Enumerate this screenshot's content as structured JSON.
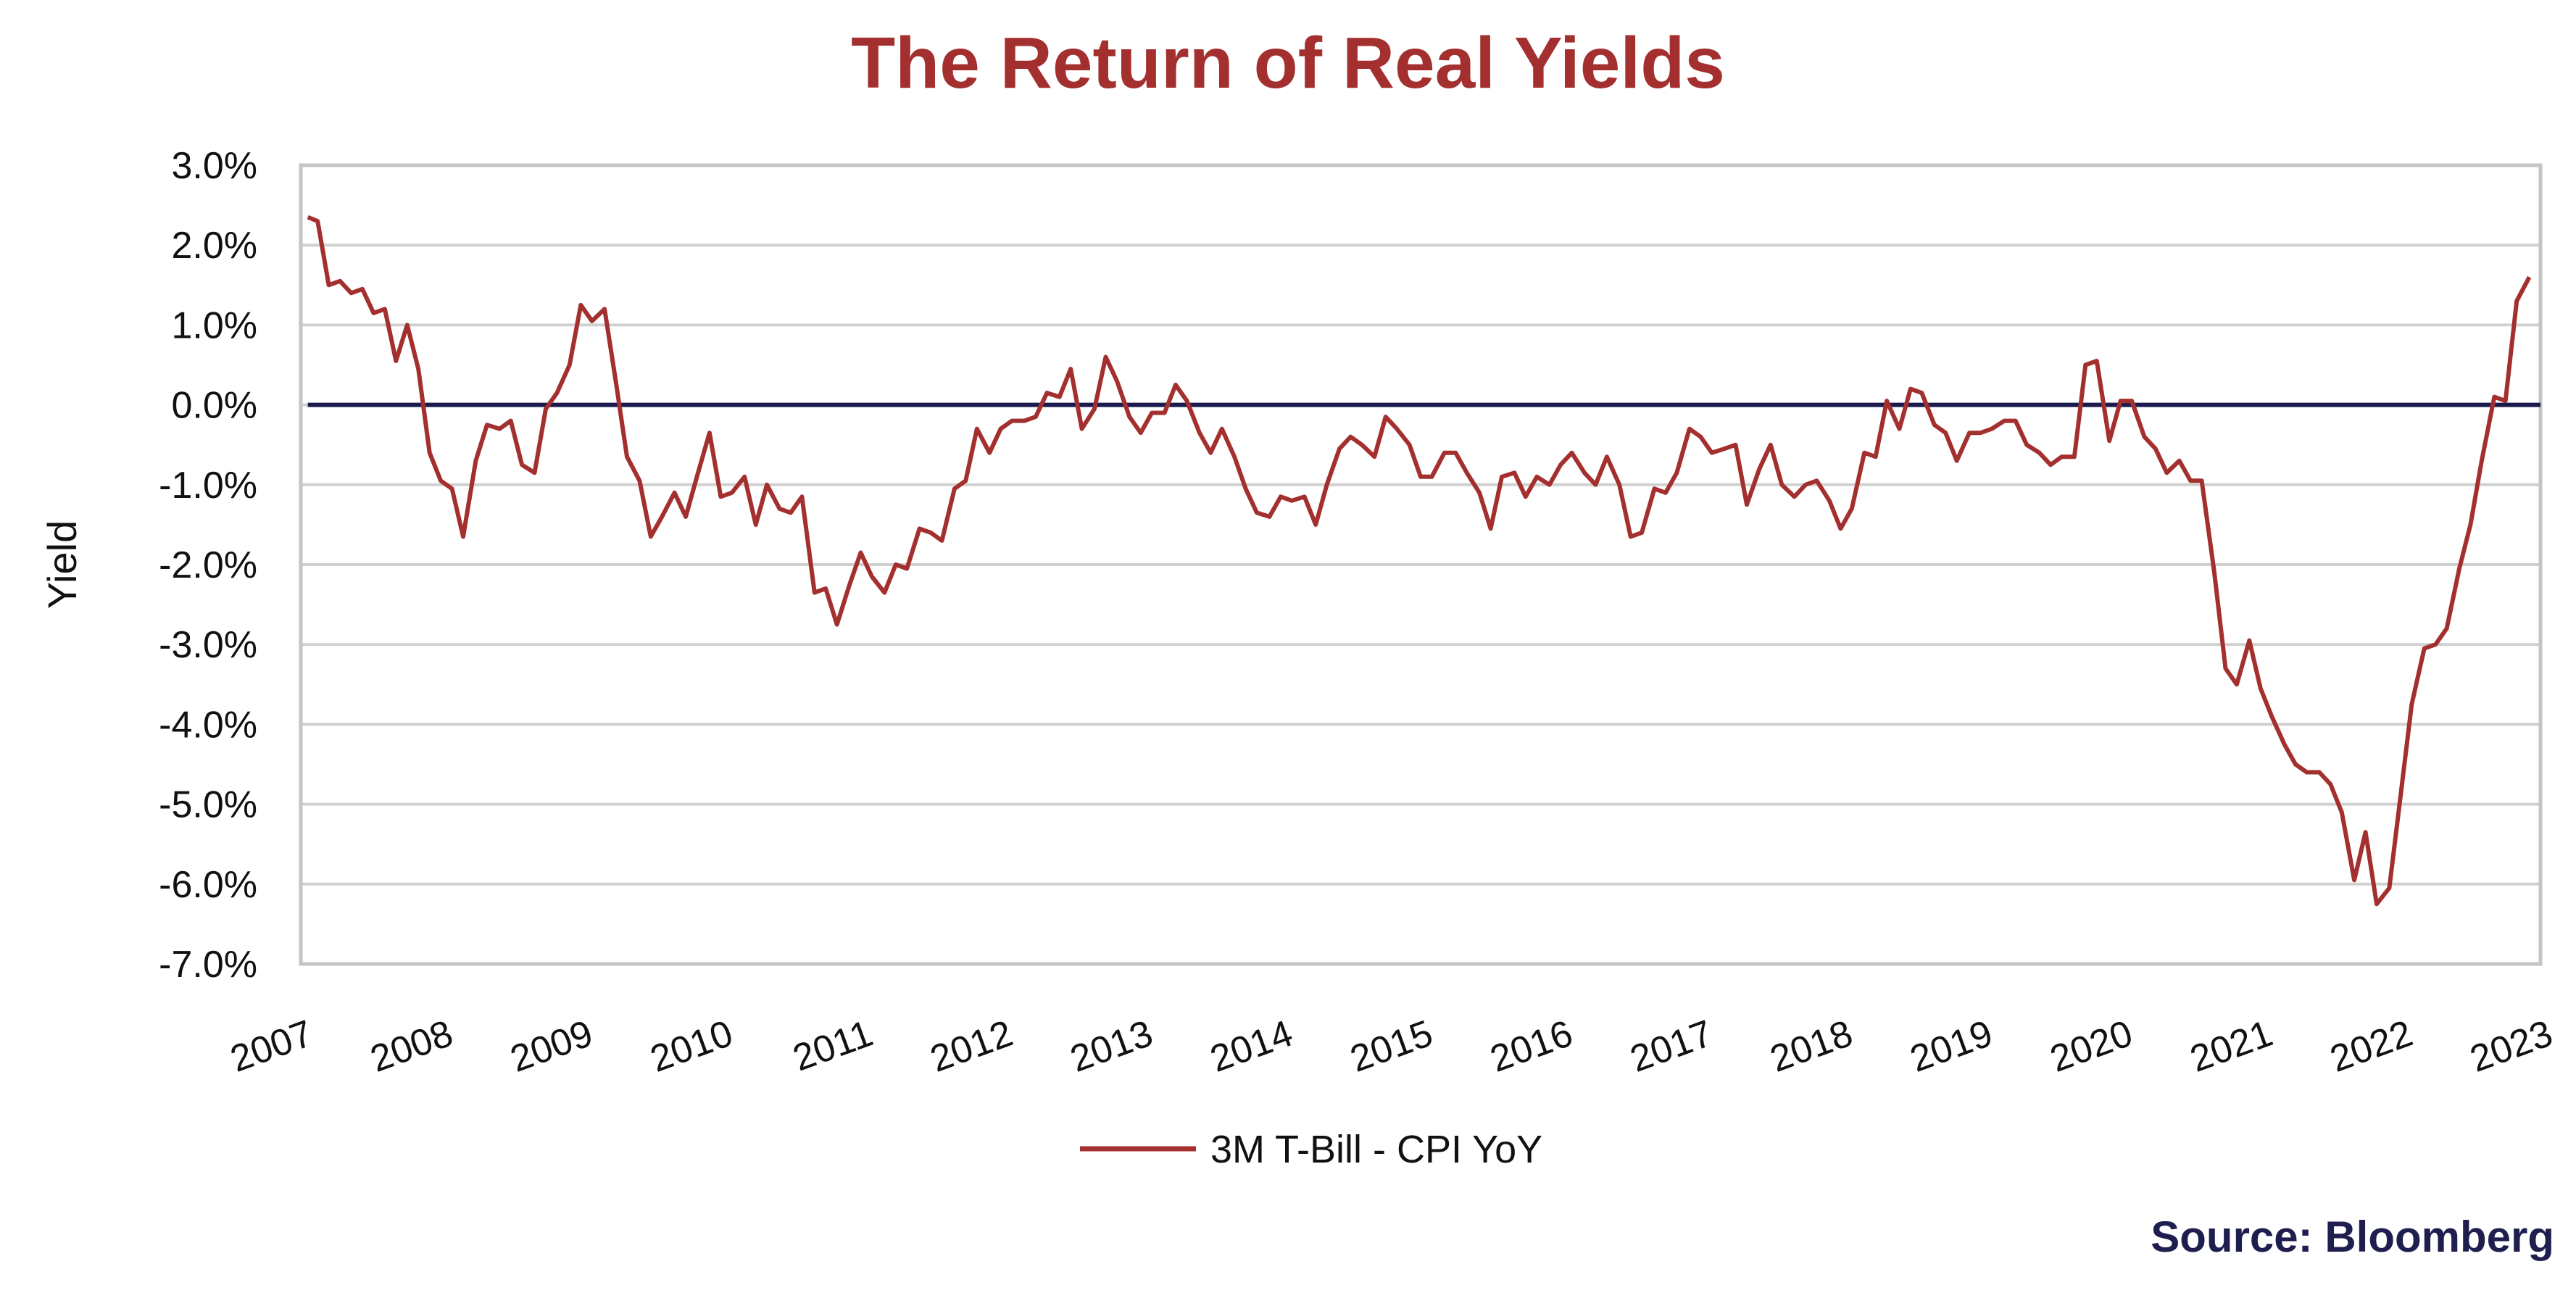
{
  "chart_data": {
    "type": "line",
    "title": "The Return of Real Yields",
    "ylabel": "Yield",
    "xlabel": "",
    "y_ticks": [
      "3.0%",
      "2.0%",
      "1.0%",
      "0.0%",
      "-1.0%",
      "-2.0%",
      "-3.0%",
      "-4.0%",
      "-5.0%",
      "-6.0%",
      "-7.0%"
    ],
    "y_tick_values": [
      3,
      2,
      1,
      0,
      -1,
      -2,
      -3,
      -4,
      -5,
      -6,
      -7
    ],
    "x_ticks": [
      "2007",
      "2008",
      "2009",
      "2010",
      "2011",
      "2012",
      "2013",
      "2014",
      "2015",
      "2016",
      "2017",
      "2018",
      "2019",
      "2020",
      "2021",
      "2022",
      "2023"
    ],
    "ylim": [
      -7,
      3
    ],
    "xlim": [
      2007,
      2023
    ],
    "grid": true,
    "legend_position": "bottom-center",
    "reference_line": 0,
    "colors": {
      "series": "#a3302f",
      "zero_line": "#1a1a4e",
      "grid": "#d0d0d0",
      "title": "#a3302f",
      "source": "#1f1f4f"
    },
    "series": [
      {
        "name": "3M T-Bill - CPI YoY",
        "points": [
          [
            2007.05,
            2.35
          ],
          [
            2007.12,
            2.3
          ],
          [
            2007.2,
            1.5
          ],
          [
            2007.28,
            1.55
          ],
          [
            2007.36,
            1.4
          ],
          [
            2007.44,
            1.45
          ],
          [
            2007.52,
            1.15
          ],
          [
            2007.6,
            1.2
          ],
          [
            2007.68,
            0.55
          ],
          [
            2007.76,
            1.0
          ],
          [
            2007.84,
            0.45
          ],
          [
            2007.92,
            -0.6
          ],
          [
            2008.0,
            -0.95
          ],
          [
            2008.08,
            -1.05
          ],
          [
            2008.16,
            -1.65
          ],
          [
            2008.25,
            -0.7
          ],
          [
            2008.33,
            -0.25
          ],
          [
            2008.42,
            -0.3
          ],
          [
            2008.5,
            -0.2
          ],
          [
            2008.58,
            -0.75
          ],
          [
            2008.67,
            -0.85
          ],
          [
            2008.75,
            -0.05
          ],
          [
            2008.83,
            0.15
          ],
          [
            2008.92,
            0.5
          ],
          [
            2009.0,
            1.25
          ],
          [
            2009.08,
            1.05
          ],
          [
            2009.17,
            1.2
          ],
          [
            2009.25,
            0.3
          ],
          [
            2009.33,
            -0.65
          ],
          [
            2009.42,
            -0.95
          ],
          [
            2009.5,
            -1.65
          ],
          [
            2009.58,
            -1.4
          ],
          [
            2009.67,
            -1.1
          ],
          [
            2009.75,
            -1.4
          ],
          [
            2009.83,
            -0.9
          ],
          [
            2009.92,
            -0.35
          ],
          [
            2010.0,
            -1.15
          ],
          [
            2010.08,
            -1.1
          ],
          [
            2010.17,
            -0.9
          ],
          [
            2010.25,
            -1.5
          ],
          [
            2010.33,
            -1.0
          ],
          [
            2010.42,
            -1.3
          ],
          [
            2010.5,
            -1.35
          ],
          [
            2010.58,
            -1.15
          ],
          [
            2010.67,
            -2.35
          ],
          [
            2010.75,
            -2.3
          ],
          [
            2010.83,
            -2.75
          ],
          [
            2010.92,
            -2.25
          ],
          [
            2011.0,
            -1.85
          ],
          [
            2011.08,
            -2.15
          ],
          [
            2011.17,
            -2.35
          ],
          [
            2011.25,
            -2.0
          ],
          [
            2011.33,
            -2.05
          ],
          [
            2011.42,
            -1.55
          ],
          [
            2011.5,
            -1.6
          ],
          [
            2011.58,
            -1.7
          ],
          [
            2011.67,
            -1.05
          ],
          [
            2011.75,
            -0.95
          ],
          [
            2011.83,
            -0.3
          ],
          [
            2011.92,
            -0.6
          ],
          [
            2012.0,
            -0.3
          ],
          [
            2012.08,
            -0.2
          ],
          [
            2012.17,
            -0.2
          ],
          [
            2012.25,
            -0.15
          ],
          [
            2012.33,
            0.15
          ],
          [
            2012.42,
            0.1
          ],
          [
            2012.5,
            0.45
          ],
          [
            2012.58,
            -0.3
          ],
          [
            2012.67,
            -0.05
          ],
          [
            2012.75,
            0.6
          ],
          [
            2012.83,
            0.3
          ],
          [
            2012.92,
            -0.15
          ],
          [
            2013.0,
            -0.35
          ],
          [
            2013.08,
            -0.1
          ],
          [
            2013.17,
            -0.1
          ],
          [
            2013.25,
            0.25
          ],
          [
            2013.33,
            0.05
          ],
          [
            2013.42,
            -0.35
          ],
          [
            2013.5,
            -0.6
          ],
          [
            2013.58,
            -0.3
          ],
          [
            2013.67,
            -0.65
          ],
          [
            2013.75,
            -1.05
          ],
          [
            2013.83,
            -1.35
          ],
          [
            2013.92,
            -1.4
          ],
          [
            2014.0,
            -1.15
          ],
          [
            2014.08,
            -1.2
          ],
          [
            2014.17,
            -1.15
          ],
          [
            2014.25,
            -1.5
          ],
          [
            2014.33,
            -1.0
          ],
          [
            2014.42,
            -0.55
          ],
          [
            2014.5,
            -0.4
          ],
          [
            2014.58,
            -0.5
          ],
          [
            2014.67,
            -0.65
          ],
          [
            2014.75,
            -0.15
          ],
          [
            2014.83,
            -0.3
          ],
          [
            2014.92,
            -0.5
          ],
          [
            2015.0,
            -0.9
          ],
          [
            2015.08,
            -0.9
          ],
          [
            2015.17,
            -0.6
          ],
          [
            2015.25,
            -0.6
          ],
          [
            2015.33,
            -0.85
          ],
          [
            2015.42,
            -1.1
          ],
          [
            2015.5,
            -1.55
          ],
          [
            2015.58,
            -0.9
          ],
          [
            2015.67,
            -0.85
          ],
          [
            2015.75,
            -1.15
          ],
          [
            2015.83,
            -0.9
          ],
          [
            2015.92,
            -1.0
          ],
          [
            2016.0,
            -0.75
          ],
          [
            2016.08,
            -0.6
          ],
          [
            2016.17,
            -0.85
          ],
          [
            2016.25,
            -1.0
          ],
          [
            2016.33,
            -0.65
          ],
          [
            2016.42,
            -1.0
          ],
          [
            2016.5,
            -1.65
          ],
          [
            2016.58,
            -1.6
          ],
          [
            2016.67,
            -1.05
          ],
          [
            2016.75,
            -1.1
          ],
          [
            2016.83,
            -0.85
          ],
          [
            2016.92,
            -0.3
          ],
          [
            2017.0,
            -0.4
          ],
          [
            2017.08,
            -0.6
          ],
          [
            2017.17,
            -0.55
          ],
          [
            2017.25,
            -0.5
          ],
          [
            2017.33,
            -1.25
          ],
          [
            2017.42,
            -0.8
          ],
          [
            2017.5,
            -0.5
          ],
          [
            2017.58,
            -1.0
          ],
          [
            2017.67,
            -1.15
          ],
          [
            2017.75,
            -1.0
          ],
          [
            2017.83,
            -0.95
          ],
          [
            2017.92,
            -1.2
          ],
          [
            2018.0,
            -1.55
          ],
          [
            2018.08,
            -1.3
          ],
          [
            2018.17,
            -0.6
          ],
          [
            2018.25,
            -0.65
          ],
          [
            2018.33,
            0.05
          ],
          [
            2018.42,
            -0.3
          ],
          [
            2018.5,
            0.2
          ],
          [
            2018.58,
            0.15
          ],
          [
            2018.67,
            -0.25
          ],
          [
            2018.75,
            -0.35
          ],
          [
            2018.83,
            -0.7
          ],
          [
            2018.92,
            -0.35
          ],
          [
            2019.0,
            -0.35
          ],
          [
            2019.08,
            -0.3
          ],
          [
            2019.17,
            -0.2
          ],
          [
            2019.25,
            -0.2
          ],
          [
            2019.33,
            -0.5
          ],
          [
            2019.42,
            -0.6
          ],
          [
            2019.5,
            -0.75
          ],
          [
            2019.58,
            -0.65
          ],
          [
            2019.67,
            -0.65
          ],
          [
            2019.75,
            0.5
          ],
          [
            2019.83,
            0.55
          ],
          [
            2019.92,
            -0.45
          ],
          [
            2020.0,
            0.05
          ],
          [
            2020.08,
            0.05
          ],
          [
            2020.17,
            -0.4
          ],
          [
            2020.25,
            -0.55
          ],
          [
            2020.33,
            -0.85
          ],
          [
            2020.42,
            -0.7
          ],
          [
            2020.5,
            -0.95
          ],
          [
            2020.58,
            -0.95
          ],
          [
            2020.67,
            -2.1
          ],
          [
            2020.75,
            -3.3
          ],
          [
            2020.83,
            -3.5
          ],
          [
            2020.92,
            -2.95
          ],
          [
            2021.0,
            -3.55
          ],
          [
            2021.08,
            -3.9
          ],
          [
            2021.17,
            -4.25
          ],
          [
            2021.25,
            -4.5
          ],
          [
            2021.33,
            -4.6
          ],
          [
            2021.42,
            -4.6
          ],
          [
            2021.5,
            -4.75
          ],
          [
            2021.58,
            -5.1
          ],
          [
            2021.67,
            -5.95
          ],
          [
            2021.75,
            -5.35
          ],
          [
            2021.83,
            -6.25
          ],
          [
            2021.92,
            -6.05
          ],
          [
            2022.0,
            -4.9
          ],
          [
            2022.08,
            -3.75
          ],
          [
            2022.17,
            -3.05
          ],
          [
            2022.25,
            -3.0
          ],
          [
            2022.33,
            -2.8
          ],
          [
            2022.42,
            -2.05
          ],
          [
            2022.5,
            -1.5
          ],
          [
            2022.58,
            -0.7
          ],
          [
            2022.67,
            0.1
          ],
          [
            2022.75,
            0.05
          ],
          [
            2022.83,
            1.3
          ],
          [
            2022.92,
            1.6
          ]
        ]
      }
    ]
  },
  "source_note": "Source: Bloomberg"
}
